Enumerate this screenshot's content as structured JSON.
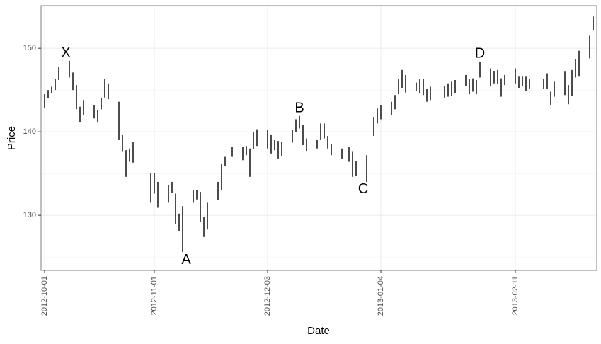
{
  "chart_data": {
    "type": "range",
    "x_label": "Date",
    "y_label": "Price",
    "x": [
      "2012-10-01",
      "2012-10-02",
      "2012-10-03",
      "2012-10-04",
      "2012-10-05",
      "2012-10-08",
      "2012-10-09",
      "2012-10-10",
      "2012-10-11",
      "2012-10-12",
      "2012-10-15",
      "2012-10-16",
      "2012-10-17",
      "2012-10-18",
      "2012-10-19",
      "2012-10-22",
      "2012-10-23",
      "2012-10-24",
      "2012-10-25",
      "2012-10-26",
      "2012-10-31",
      "2012-11-01",
      "2012-11-02",
      "2012-11-05",
      "2012-11-06",
      "2012-11-07",
      "2012-11-08",
      "2012-11-09",
      "2012-11-12",
      "2012-11-13",
      "2012-11-14",
      "2012-11-15",
      "2012-11-16",
      "2012-11-19",
      "2012-11-20",
      "2012-11-21",
      "2012-11-23",
      "2012-11-26",
      "2012-11-27",
      "2012-11-28",
      "2012-11-29",
      "2012-11-30",
      "2012-12-03",
      "2012-12-04",
      "2012-12-05",
      "2012-12-06",
      "2012-12-07",
      "2012-12-10",
      "2012-12-11",
      "2012-12-12",
      "2012-12-13",
      "2012-12-14",
      "2012-12-17",
      "2012-12-18",
      "2012-12-19",
      "2012-12-20",
      "2012-12-21",
      "2012-12-24",
      "2012-12-26",
      "2012-12-27",
      "2012-12-28",
      "2012-12-31",
      "2013-01-02",
      "2013-01-03",
      "2013-01-04",
      "2013-01-07",
      "2013-01-08",
      "2013-01-09",
      "2013-01-10",
      "2013-01-11",
      "2013-01-14",
      "2013-01-15",
      "2013-01-16",
      "2013-01-17",
      "2013-01-18",
      "2013-01-22",
      "2013-01-23",
      "2013-01-24",
      "2013-01-25",
      "2013-01-28",
      "2013-01-29",
      "2013-01-30",
      "2013-01-31",
      "2013-02-01",
      "2013-02-04",
      "2013-02-05",
      "2013-02-06",
      "2013-02-07",
      "2013-02-08",
      "2013-02-11",
      "2013-02-12",
      "2013-02-13",
      "2013-02-14",
      "2013-02-15",
      "2013-02-19",
      "2013-02-20",
      "2013-02-21",
      "2013-02-22",
      "2013-02-25",
      "2013-02-26",
      "2013-02-27",
      "2013-02-28",
      "2013-03-01",
      "2013-03-04",
      "2013-03-05"
    ],
    "low": [
      142.9,
      144.0,
      144.6,
      145.0,
      146.2,
      146.5,
      145.0,
      142.7,
      141.2,
      142.0,
      141.6,
      141.1,
      142.7,
      144.1,
      143.9,
      139.0,
      137.6,
      134.6,
      136.4,
      136.3,
      131.5,
      132.6,
      130.9,
      131.5,
      132.7,
      129.0,
      128.1,
      125.6,
      131.5,
      131.9,
      129.2,
      127.4,
      128.3,
      131.8,
      133.0,
      135.9,
      137.0,
      136.6,
      137.2,
      134.6,
      137.9,
      138.3,
      138.0,
      137.4,
      137.8,
      136.8,
      137.1,
      138.7,
      140.0,
      140.4,
      138.4,
      137.7,
      138.0,
      139.0,
      139.2,
      138.0,
      137.2,
      136.8,
      136.4,
      134.6,
      134.7,
      134.0,
      139.5,
      141.0,
      141.5,
      142.0,
      142.7,
      144.5,
      145.2,
      144.7,
      144.9,
      144.6,
      144.4,
      143.6,
      143.8,
      144.1,
      144.2,
      144.3,
      144.6,
      145.5,
      144.5,
      144.8,
      144.5,
      146.5,
      145.5,
      145.8,
      145.7,
      144.2,
      145.6,
      145.8,
      145.2,
      145.5,
      144.9,
      145.1,
      145.1,
      145.1,
      143.2,
      144.2,
      144.4,
      143.3,
      144.3,
      146.5,
      146.6,
      148.8,
      152.2
    ],
    "high": [
      144.5,
      145.0,
      145.4,
      146.3,
      147.8,
      148.5,
      147.1,
      145.6,
      143.0,
      143.8,
      143.2,
      142.6,
      144.0,
      146.3,
      145.8,
      143.6,
      139.6,
      137.8,
      138.0,
      138.8,
      135.0,
      135.1,
      134.0,
      133.6,
      134.0,
      132.6,
      130.2,
      131.1,
      133.0,
      133.0,
      132.8,
      129.8,
      131.5,
      134.0,
      136.2,
      137.0,
      138.2,
      138.2,
      138.3,
      138.0,
      140.0,
      140.3,
      140.2,
      139.6,
      139.0,
      138.9,
      138.8,
      140.2,
      141.5,
      141.9,
      140.8,
      139.2,
      139.0,
      141.0,
      141.0,
      139.5,
      138.5,
      138.0,
      138.2,
      137.6,
      136.5,
      137.2,
      141.7,
      142.8,
      143.2,
      143.6,
      144.4,
      146.3,
      147.4,
      146.8,
      145.9,
      146.3,
      146.3,
      145.1,
      145.4,
      145.5,
      145.8,
      146.0,
      146.2,
      146.8,
      146.3,
      146.4,
      146.2,
      148.4,
      147.6,
      147.3,
      147.4,
      146.4,
      146.8,
      147.6,
      146.6,
      146.6,
      146.6,
      146.3,
      146.3,
      147.0,
      144.8,
      146.0,
      147.2,
      145.6,
      147.4,
      148.7,
      149.7,
      151.5,
      153.8
    ],
    "color": "#000000",
    "xlim": [
      "2012-09-30",
      "2013-03-06"
    ],
    "xticks": [
      "2012-10-01",
      "2012-11-01",
      "2012-12-03",
      "2013-01-04",
      "2013-02-11"
    ],
    "ylim": [
      123.4,
      155.1
    ],
    "yticks": [
      130,
      140,
      150
    ],
    "y_minor_ticks": [
      125,
      135,
      145,
      155
    ],
    "grid": true,
    "annotations": [
      {
        "text": "X",
        "x": "2012-10-07",
        "y": 149.4
      },
      {
        "text": "A",
        "x": "2012-11-10",
        "y": 124.6
      },
      {
        "text": "B",
        "x": "2012-12-12",
        "y": 142.8
      },
      {
        "text": "C",
        "x": "2012-12-30",
        "y": 133.1
      },
      {
        "text": "D",
        "x": "2013-02-01",
        "y": 149.3
      }
    ]
  }
}
